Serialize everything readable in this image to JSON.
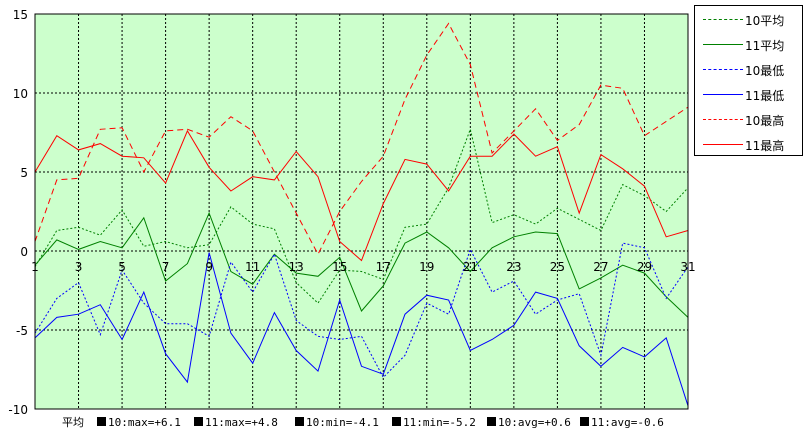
{
  "chart_data": {
    "type": "line",
    "x": [
      1,
      2,
      3,
      4,
      5,
      6,
      7,
      8,
      9,
      10,
      11,
      12,
      13,
      14,
      15,
      16,
      17,
      18,
      19,
      20,
      21,
      22,
      23,
      24,
      25,
      26,
      27,
      28,
      29,
      30,
      31
    ],
    "x_tick_labels": [
      "1",
      "3",
      "5",
      "7",
      "9",
      "11",
      "13",
      "15",
      "17",
      "19",
      "21",
      "23",
      "25",
      "27",
      "29",
      "31"
    ],
    "y_tick_labels": [
      "15",
      "10",
      "5",
      "0",
      "-5",
      "-10"
    ],
    "ylim": [
      -10,
      15
    ],
    "xlim": [
      1,
      31
    ],
    "grid": true,
    "background": "#ccffcc",
    "legend_position": "right",
    "series": [
      {
        "name": "10平均",
        "color": "#008000",
        "dash": "dotted",
        "values": [
          -1.0,
          1.3,
          1.5,
          1.0,
          2.6,
          0.3,
          0.6,
          0.2,
          0.4,
          2.8,
          1.7,
          1.4,
          -2.0,
          -3.3,
          -1.2,
          -1.3,
          -1.8,
          1.5,
          1.7,
          4.0,
          7.7,
          1.8,
          2.3,
          1.7,
          2.7,
          2.0,
          1.3,
          4.2,
          3.5,
          2.5,
          4.0
        ]
      },
      {
        "name": "11平均",
        "color": "#008000",
        "dash": "solid",
        "values": [
          -0.9,
          0.7,
          0.1,
          0.6,
          0.2,
          2.1,
          -1.9,
          -0.8,
          2.4,
          -1.3,
          -2.1,
          -0.2,
          -1.4,
          -1.6,
          -0.4,
          -3.8,
          -2.2,
          0.5,
          1.2,
          0.2,
          -1.3,
          0.2,
          0.9,
          1.2,
          1.1,
          -2.4,
          -1.7,
          -0.9,
          -1.4,
          -2.9,
          -4.2
        ]
      },
      {
        "name": "10最低",
        "color": "#0000ff",
        "dash": "dotted",
        "values": [
          -5.2,
          -3.0,
          -2.0,
          -5.3,
          -1.2,
          -3.3,
          -4.6,
          -4.6,
          -5.4,
          -0.7,
          -2.6,
          -0.2,
          -4.4,
          -5.4,
          -5.6,
          -5.4,
          -8.0,
          -6.6,
          -3.3,
          -4.0,
          0.1,
          -2.6,
          -1.9,
          -4.0,
          -3.1,
          -2.7,
          -6.6,
          0.5,
          0.2,
          -3.0,
          -1.0
        ]
      },
      {
        "name": "11最低",
        "color": "#0000ff",
        "dash": "solid",
        "values": [
          -5.5,
          -4.2,
          -4.0,
          -3.4,
          -5.6,
          -2.6,
          -6.5,
          -8.3,
          -0.1,
          -5.2,
          -7.1,
          -3.9,
          -6.3,
          -7.6,
          -3.1,
          -7.3,
          -7.8,
          -4.0,
          -2.8,
          -3.1,
          -6.3,
          -5.6,
          -4.7,
          -2.6,
          -3.0,
          -6.0,
          -7.3,
          -6.1,
          -6.7,
          -5.5,
          -9.8
        ]
      },
      {
        "name": "10最高",
        "color": "#ff0000",
        "dash": "dashed",
        "values": [
          0.6,
          4.5,
          4.6,
          7.7,
          7.8,
          5.0,
          7.6,
          7.7,
          7.2,
          8.5,
          7.6,
          5.0,
          2.4,
          -0.2,
          2.5,
          4.4,
          6.0,
          9.6,
          12.4,
          14.4,
          11.8,
          6.2,
          7.6,
          9.0,
          7.0,
          8.0,
          10.5,
          10.3,
          7.3,
          8.2,
          9.1
        ]
      },
      {
        "name": "11最高",
        "color": "#ff0000",
        "dash": "solid",
        "values": [
          5.0,
          7.3,
          6.4,
          6.8,
          6.0,
          5.9,
          4.3,
          7.6,
          5.3,
          3.8,
          4.7,
          4.5,
          6.3,
          4.7,
          0.6,
          -0.6,
          3.0,
          5.8,
          5.5,
          3.8,
          6.0,
          6.0,
          7.4,
          6.0,
          6.6,
          2.4,
          6.1,
          5.2,
          4.1,
          0.9,
          1.3
        ]
      }
    ],
    "footer": {
      "label": "平均",
      "stats": [
        "10:max=+6.1",
        "11:max=+4.8",
        "10:min=-4.1",
        "11:min=-5.2",
        "10:avg=+0.6",
        "11:avg=-0.6"
      ]
    }
  }
}
